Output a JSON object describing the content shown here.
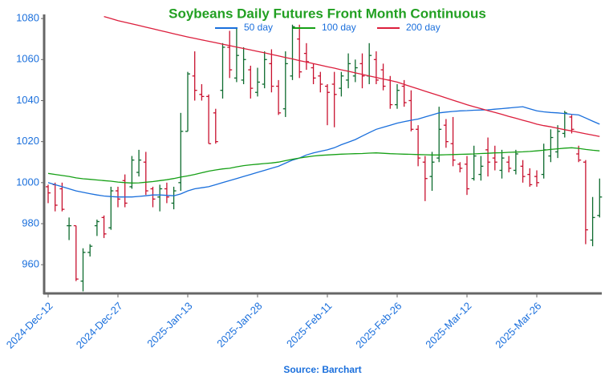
{
  "chart_data": {
    "type": "ohlc",
    "title": "Soybeans Daily Futures Front Month Continuous",
    "source": "Source: Barchart",
    "categories": [
      "2024-Dec-12",
      null,
      null,
      null,
      null,
      null,
      null,
      null,
      null,
      null,
      "2024-Dec-27",
      null,
      null,
      null,
      null,
      null,
      null,
      null,
      null,
      null,
      "2025-Jan-13",
      null,
      null,
      null,
      null,
      null,
      null,
      null,
      null,
      null,
      "2025-Jan-28",
      null,
      null,
      null,
      null,
      null,
      null,
      null,
      null,
      null,
      "2025-Feb-11",
      null,
      null,
      null,
      null,
      null,
      null,
      null,
      null,
      null,
      "2025-Feb-26",
      null,
      null,
      null,
      null,
      null,
      null,
      null,
      null,
      null,
      "2025-Mar-12",
      null,
      null,
      null,
      null,
      null,
      null,
      null,
      null,
      null,
      "2025-Mar-26",
      null,
      null,
      null,
      null,
      null,
      null,
      null,
      null,
      null
    ],
    "open": [
      998,
      999,
      997,
      979,
      979,
      952,
      966,
      979,
      983,
      978,
      996,
      1001,
      998,
      1005,
      1010,
      997,
      993,
      997,
      990,
      1000,
      1025,
      1052,
      1043,
      1042,
      1034,
      1045,
      1066,
      1051,
      1050,
      1055,
      1044,
      1048,
      1058,
      1047,
      1036,
      1052,
      1070,
      1063,
      1056,
      1052,
      1047,
      1048,
      1046,
      1050,
      1052,
      1058,
      1052,
      1060,
      1055,
      1050,
      1038,
      1047,
      1040,
      1026,
      1010,
      1003,
      1012,
      1028,
      1019,
      1009,
      1009,
      1002,
      1004,
      1016,
      1012,
      1006,
      1010,
      1006,
      1008,
      1004,
      1003,
      1004,
      1013,
      1015,
      1024,
      1032,
      1014,
      1010,
      972,
      984
    ],
    "high": [
      999,
      1000,
      1000,
      983,
      979,
      968,
      970,
      982,
      984,
      998,
      998,
      1004,
      1013,
      1016,
      1015,
      998,
      999,
      1000,
      998,
      1034,
      1054,
      1064,
      1048,
      1043,
      1036,
      1068,
      1074,
      1075,
      1066,
      1057,
      1056,
      1064,
      1065,
      1050,
      1064,
      1077,
      1077,
      1068,
      1058,
      1054,
      1048,
      1054,
      1054,
      1063,
      1060,
      1063,
      1068,
      1064,
      1058,
      1052,
      1048,
      1050,
      1045,
      1028,
      1013,
      1015,
      1037,
      1031,
      1032,
      1010,
      1013,
      1018,
      1013,
      1022,
      1018,
      1016,
      1013,
      1016,
      1011,
      1007,
      1006,
      1019,
      1026,
      1028,
      1035,
      1033,
      1018,
      1011,
      993,
      1002
    ],
    "low": [
      990,
      986,
      986,
      972,
      952,
      947,
      964,
      974,
      973,
      977,
      988,
      988,
      997,
      1003,
      994,
      988,
      986,
      990,
      987,
      996,
      1025,
      1040,
      1040,
      1019,
      1019,
      1041,
      1051,
      1049,
      1048,
      1041,
      1042,
      1046,
      1044,
      1033,
      1032,
      1050,
      1051,
      1055,
      1048,
      1044,
      1028,
      1027,
      1042,
      1046,
      1049,
      1046,
      1048,
      1048,
      1045,
      1036,
      1036,
      1037,
      1025,
      1008,
      991,
      996,
      1010,
      1017,
      1008,
      1005,
      994,
      1001,
      1001,
      1003,
      1006,
      1002,
      1005,
      1004,
      1000,
      998,
      998,
      1002,
      1010,
      1012,
      1022,
      1024,
      1010,
      970,
      969,
      983
    ],
    "close": [
      995,
      989,
      987,
      979,
      953,
      966,
      969,
      981,
      975,
      996,
      992,
      990,
      1011,
      1011,
      996,
      992,
      997,
      993,
      996,
      1025,
      1053,
      1045,
      1042,
      1019,
      1020,
      1066,
      1055,
      1062,
      1060,
      1046,
      1049,
      1060,
      1047,
      1034,
      1058,
      1076,
      1054,
      1059,
      1051,
      1048,
      1044,
      1043,
      1052,
      1058,
      1056,
      1052,
      1062,
      1050,
      1047,
      1038,
      1045,
      1039,
      1026,
      1012,
      1002,
      1010,
      1026,
      1020,
      1011,
      1007,
      997,
      1013,
      1008,
      1010,
      1010,
      1012,
      1007,
      1014,
      1003,
      999,
      1000,
      1016,
      1022,
      1025,
      1034,
      1026,
      1011,
      977,
      983,
      993
    ],
    "up_color": "#0d6b2e",
    "down_color": "#c8102e",
    "series": [
      {
        "name": "50 day",
        "color": "#1a6fdc",
        "values": [
          1000,
          999,
          998,
          997,
          996,
          995.3,
          994.6,
          994,
          993.5,
          993.2,
          993,
          993,
          993,
          993.3,
          993.6,
          994,
          994,
          993.8,
          993.6,
          994.5,
          996,
          997,
          997.5,
          998,
          999,
          1000,
          1001,
          1002,
          1003,
          1004,
          1005,
          1006,
          1007,
          1008,
          1009.5,
          1011,
          1012,
          1013.5,
          1014.5,
          1015.3,
          1016,
          1017,
          1018.5,
          1019.7,
          1021,
          1022.7,
          1024.4,
          1026,
          1027,
          1028,
          1029,
          1029.7,
          1030.4,
          1031,
          1032,
          1033,
          1034,
          1034.4,
          1034.7,
          1035,
          1035.1,
          1035.3,
          1035.4,
          1035.5,
          1035.8,
          1036.1,
          1036.4,
          1036.7,
          1037,
          1036,
          1035,
          1034.5,
          1034.2,
          1034,
          1033.7,
          1033.3,
          1033,
          1031.5,
          1030,
          1028.5
        ]
      },
      {
        "name": "100 day",
        "color": "#16a016",
        "values": [
          1004.5,
          1004,
          1003.5,
          1003,
          1002.3,
          1001.9,
          1001.6,
          1001.3,
          1001,
          1000.7,
          1000.3,
          1000,
          999.8,
          999.9,
          1000.2,
          1000.5,
          1001,
          1001.4,
          1002,
          1002.7,
          1003.3,
          1004,
          1004.8,
          1005.6,
          1006.2,
          1006.7,
          1007,
          1007.7,
          1008.3,
          1008.7,
          1009,
          1009.3,
          1009.6,
          1010,
          1010.7,
          1011.4,
          1012,
          1012.5,
          1013,
          1013.3,
          1013.5,
          1013.7,
          1013.9,
          1014,
          1014.1,
          1014.2,
          1014.4,
          1014.5,
          1014.3,
          1014.1,
          1014,
          1013.9,
          1013.8,
          1013.7,
          1013.6,
          1013.5,
          1013.5,
          1013.6,
          1013.7,
          1013.8,
          1013.9,
          1014,
          1014.2,
          1014.3,
          1014.5,
          1014.6,
          1014.8,
          1014.9,
          1015,
          1015.2,
          1015.5,
          1015.8,
          1016.2,
          1016.5,
          1016.8,
          1017,
          1016.7,
          1016.2,
          1015.8,
          1015.5
        ]
      },
      {
        "name": "200 day",
        "color": "#dc1e3c",
        "values": [
          null,
          null,
          null,
          null,
          null,
          null,
          null,
          null,
          1081,
          1080,
          1079,
          1078.2,
          1077.4,
          1076.6,
          1075.8,
          1075,
          1074.2,
          1073.4,
          1072.6,
          1071.8,
          1071,
          1070.3,
          1069.6,
          1068.9,
          1068.2,
          1067.5,
          1066.8,
          1066.1,
          1065.4,
          1064.7,
          1064,
          1063.3,
          1062.5,
          1061.8,
          1061,
          1060.3,
          1059.5,
          1058.8,
          1058,
          1057.3,
          1056.5,
          1055.8,
          1055,
          1054.3,
          1053.5,
          1052.8,
          1052,
          1051.3,
          1050.5,
          1049.8,
          1049,
          1047.9,
          1046.8,
          1045.7,
          1044.6,
          1043.5,
          1042.4,
          1041.3,
          1040.2,
          1039.1,
          1038,
          1037,
          1036.1,
          1035.1,
          1034.2,
          1033.3,
          1032.3,
          1031.4,
          1030.4,
          1029.5,
          1028.5,
          1027.8,
          1027.2,
          1026.5,
          1025.8,
          1025.2,
          1024.5,
          1023.8,
          1023.2,
          1022.5
        ]
      }
    ],
    "ylim": [
      946,
      1082
    ],
    "yticks": [
      960,
      980,
      1000,
      1020,
      1040,
      1060,
      1080
    ]
  }
}
